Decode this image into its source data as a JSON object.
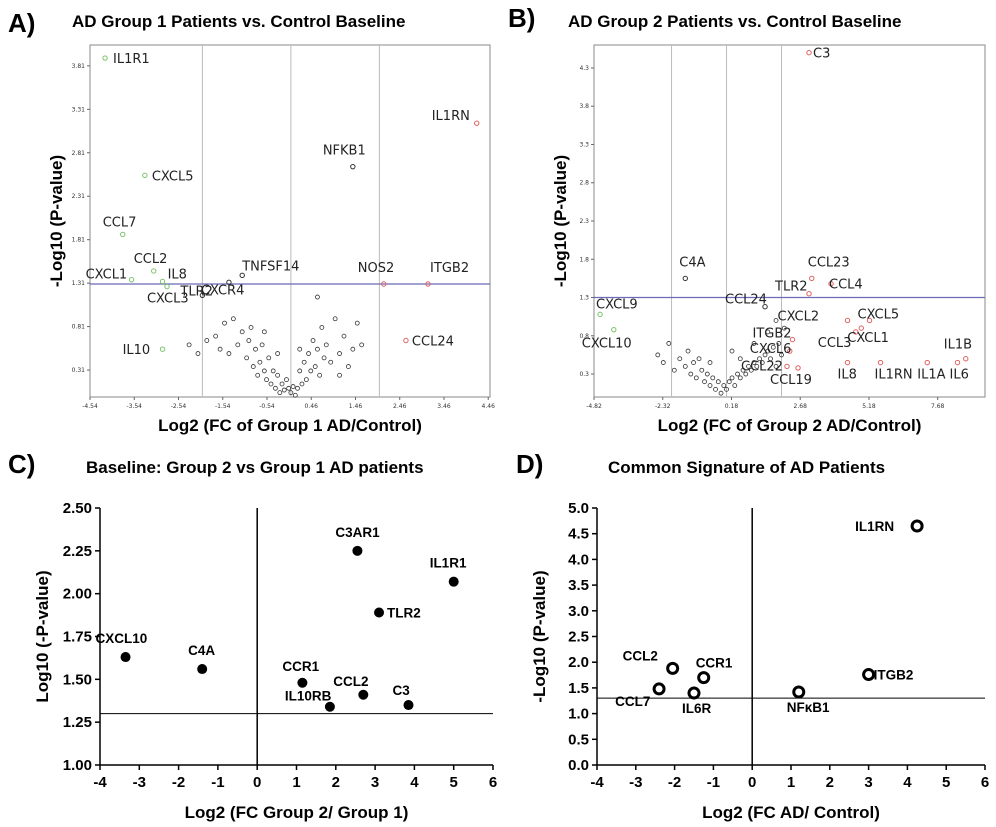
{
  "panels": {
    "a": {
      "letter": "A)",
      "title": "AD Group 1 Patients vs. Control Baseline"
    },
    "b": {
      "letter": "B)",
      "title": "AD Group 2 Patients vs. Control Baseline"
    },
    "c": {
      "letter": "C)",
      "title": "Baseline: Group 2 vs Group 1 AD patients"
    },
    "d": {
      "letter": "D)",
      "title": "Common Signature of AD Patients"
    }
  },
  "colors": {
    "up": "#e06060",
    "down": "#7dc46b",
    "ns": "#333333",
    "threshold": "#6b6bb8",
    "axis": "#000000",
    "grid": "#bbbbbb"
  },
  "chart_data": [
    {
      "id": "a",
      "type": "scatter",
      "title": "AD Group 1 Patients vs. Control Baseline",
      "xlabel": "Log2 (FC of Group 1 AD/Control)",
      "ylabel": "-Log10 (P-value)",
      "xlim": [
        -4.54,
        4.5
      ],
      "ylim": [
        0,
        4.05
      ],
      "xticks": [
        "-4.54",
        "-3.54",
        "-2.54",
        "-1.54",
        "-0.54",
        "0.46",
        "1.46",
        "2.46",
        "3.46",
        "4.46"
      ],
      "xtick_values": [
        -4.54,
        -3.54,
        -2.54,
        -1.54,
        -0.54,
        0.46,
        1.46,
        2.46,
        3.46,
        4.46
      ],
      "yticks": [
        "0.31",
        "0.81",
        "1.31",
        "1.81",
        "2.31",
        "2.81",
        "3.31",
        "3.81"
      ],
      "ytick_values": [
        0.31,
        0.81,
        1.31,
        1.81,
        2.31,
        2.81,
        3.31,
        3.81
      ],
      "vlines": [
        -2.0,
        0.0,
        2.0
      ],
      "hline": 1.3,
      "grid": false,
      "points": [
        {
          "label": "IL1R1",
          "x": -4.2,
          "y": 3.9,
          "color": "down"
        },
        {
          "label": "CXCL5",
          "x": -3.3,
          "y": 2.55,
          "color": "down"
        },
        {
          "label": "CCL7",
          "x": -3.8,
          "y": 1.87,
          "color": "down"
        },
        {
          "label": "CCL2",
          "x": -3.1,
          "y": 1.45,
          "color": "down"
        },
        {
          "label": "CXCL1",
          "x": -3.6,
          "y": 1.35,
          "color": "down"
        },
        {
          "label": "IL8",
          "x": -2.9,
          "y": 1.33,
          "color": "down"
        },
        {
          "label": "CXCL3",
          "x": -2.8,
          "y": 1.27,
          "color": "down"
        },
        {
          "label": "TLR2",
          "x": -2.0,
          "y": 1.17,
          "color": "ns"
        },
        {
          "label": "IL10",
          "x": -2.9,
          "y": 0.55,
          "color": "down"
        },
        {
          "label": "TNFSF14",
          "x": -1.1,
          "y": 1.4,
          "color": "ns"
        },
        {
          "label": "CXCR4",
          "x": -1.4,
          "y": 1.32,
          "color": "ns"
        },
        {
          "label": "NFKB1",
          "x": 1.4,
          "y": 2.65,
          "color": "ns"
        },
        {
          "label": "IL1RN",
          "x": 4.2,
          "y": 3.15,
          "color": "up"
        },
        {
          "label": "NOS2",
          "x": 2.1,
          "y": 1.3,
          "color": "up"
        },
        {
          "label": "ITGB2",
          "x": 3.1,
          "y": 1.3,
          "color": "up"
        },
        {
          "label": "CCL24",
          "x": 2.6,
          "y": 0.65,
          "color": "up"
        }
      ],
      "cloud": [
        [
          -2.3,
          0.6
        ],
        [
          -2.1,
          0.5
        ],
        [
          -1.9,
          0.65
        ],
        [
          -1.7,
          0.7
        ],
        [
          -1.6,
          0.55
        ],
        [
          -1.5,
          0.85
        ],
        [
          -1.4,
          0.5
        ],
        [
          -1.3,
          0.9
        ],
        [
          -1.2,
          0.6
        ],
        [
          -1.1,
          0.75
        ],
        [
          -1.0,
          0.45
        ],
        [
          -0.95,
          0.65
        ],
        [
          -0.9,
          0.8
        ],
        [
          -0.85,
          0.35
        ],
        [
          -0.8,
          0.55
        ],
        [
          -0.75,
          0.25
        ],
        [
          -0.7,
          0.4
        ],
        [
          -0.65,
          0.6
        ],
        [
          -0.6,
          0.3
        ],
        [
          -0.55,
          0.2
        ],
        [
          -0.5,
          0.45
        ],
        [
          -0.45,
          0.15
        ],
        [
          -0.4,
          0.3
        ],
        [
          -0.35,
          0.1
        ],
        [
          -0.3,
          0.25
        ],
        [
          -0.25,
          0.05
        ],
        [
          -0.2,
          0.15
        ],
        [
          -0.15,
          0.08
        ],
        [
          -0.1,
          0.2
        ],
        [
          -0.05,
          0.1
        ],
        [
          0.0,
          0.05
        ],
        [
          0.05,
          0.12
        ],
        [
          0.1,
          0.02
        ],
        [
          0.15,
          0.1
        ],
        [
          0.2,
          0.3
        ],
        [
          0.25,
          0.15
        ],
        [
          0.3,
          0.4
        ],
        [
          0.35,
          0.2
        ],
        [
          0.4,
          0.5
        ],
        [
          0.45,
          0.3
        ],
        [
          0.5,
          0.65
        ],
        [
          0.55,
          0.35
        ],
        [
          0.6,
          0.55
        ],
        [
          0.65,
          0.25
        ],
        [
          0.7,
          0.8
        ],
        [
          0.75,
          0.45
        ],
        [
          0.8,
          0.6
        ],
        [
          0.9,
          0.4
        ],
        [
          1.0,
          0.9
        ],
        [
          1.1,
          0.5
        ],
        [
          1.2,
          0.7
        ],
        [
          1.3,
          0.35
        ],
        [
          1.4,
          0.55
        ],
        [
          1.5,
          0.85
        ],
        [
          1.6,
          0.6
        ],
        [
          0.2,
          0.55
        ],
        [
          -0.3,
          0.5
        ],
        [
          0.6,
          1.15
        ],
        [
          -0.6,
          0.75
        ],
        [
          1.1,
          0.25
        ]
      ]
    },
    {
      "id": "b",
      "type": "scatter",
      "title": "AD Group 2 Patients vs. Control Baseline",
      "xlabel": "Log2 (FC of Group 2 AD/Control)",
      "ylabel": "-Log10 (P-value)",
      "xlim": [
        -4.82,
        9.4
      ],
      "ylim": [
        0,
        4.6
      ],
      "xticks": [
        "-4.82",
        "-2.32",
        "0.18",
        "2.68",
        "5.18",
        "7.68"
      ],
      "xtick_values": [
        -4.82,
        -2.32,
        0.18,
        2.68,
        5.18,
        7.68
      ],
      "yticks": [
        "0.3",
        "0.8",
        "1.3",
        "1.8",
        "2.3",
        "2.8",
        "3.3",
        "3.8",
        "4.3"
      ],
      "ytick_values": [
        0.3,
        0.8,
        1.3,
        1.8,
        2.3,
        2.8,
        3.3,
        3.8,
        4.3
      ],
      "vlines": [
        -2.0,
        0.0,
        2.0
      ],
      "hline": 1.3,
      "grid": false,
      "points": [
        {
          "label": "C3",
          "x": 3.0,
          "y": 4.5,
          "color": "up"
        },
        {
          "label": "C4A",
          "x": -1.5,
          "y": 1.55,
          "color": "ns"
        },
        {
          "label": "CXCL9",
          "x": -4.6,
          "y": 1.08,
          "color": "down"
        },
        {
          "label": "CXCL10",
          "x": -4.1,
          "y": 0.88,
          "color": "down"
        },
        {
          "label": "CCL24",
          "x": 1.4,
          "y": 1.18,
          "color": "ns"
        },
        {
          "label": "TLR2",
          "x": 3.0,
          "y": 1.35,
          "color": "up"
        },
        {
          "label": "CCL23",
          "x": 3.1,
          "y": 1.55,
          "color": "up"
        },
        {
          "label": "CCL4",
          "x": 3.8,
          "y": 1.48,
          "color": "up"
        },
        {
          "label": "CXCL2",
          "x": 4.4,
          "y": 1.0,
          "color": "up"
        },
        {
          "label": "CXCL5",
          "x": 5.2,
          "y": 1.0,
          "color": "up"
        },
        {
          "label": "CCL3",
          "x": 4.7,
          "y": 0.85,
          "color": "up"
        },
        {
          "label": "CXCL1",
          "x": 4.9,
          "y": 0.9,
          "color": "up"
        },
        {
          "label": "ITGB2",
          "x": 2.4,
          "y": 0.75,
          "color": "up"
        },
        {
          "label": "CXCL6",
          "x": 2.3,
          "y": 0.6,
          "color": "up"
        },
        {
          "label": "CCL22",
          "x": 2.2,
          "y": 0.4,
          "color": "up"
        },
        {
          "label": "CCL19",
          "x": 2.6,
          "y": 0.38,
          "color": "up"
        },
        {
          "label": "IL8",
          "x": 4.4,
          "y": 0.45,
          "color": "up"
        },
        {
          "label": "IL1RN",
          "x": 5.6,
          "y": 0.45,
          "color": "up"
        },
        {
          "label": "IL1A",
          "x": 7.3,
          "y": 0.45,
          "color": "up"
        },
        {
          "label": "IL1B",
          "x": 8.7,
          "y": 0.5,
          "color": "up"
        },
        {
          "label": "IL6",
          "x": 8.4,
          "y": 0.45,
          "color": "up"
        }
      ],
      "cloud": [
        [
          -2.5,
          0.55
        ],
        [
          -2.3,
          0.45
        ],
        [
          -2.1,
          0.7
        ],
        [
          -1.9,
          0.35
        ],
        [
          -1.7,
          0.5
        ],
        [
          -1.5,
          0.4
        ],
        [
          -1.4,
          0.6
        ],
        [
          -1.3,
          0.3
        ],
        [
          -1.2,
          0.45
        ],
        [
          -1.1,
          0.25
        ],
        [
          -1.0,
          0.5
        ],
        [
          -0.9,
          0.35
        ],
        [
          -0.8,
          0.2
        ],
        [
          -0.7,
          0.3
        ],
        [
          -0.6,
          0.15
        ],
        [
          -0.5,
          0.25
        ],
        [
          -0.4,
          0.1
        ],
        [
          -0.3,
          0.2
        ],
        [
          -0.2,
          0.05
        ],
        [
          -0.1,
          0.15
        ],
        [
          0.0,
          0.1
        ],
        [
          0.1,
          0.2
        ],
        [
          0.2,
          0.25
        ],
        [
          0.3,
          0.15
        ],
        [
          0.4,
          0.3
        ],
        [
          0.5,
          0.25
        ],
        [
          0.6,
          0.35
        ],
        [
          0.7,
          0.3
        ],
        [
          0.8,
          0.4
        ],
        [
          0.9,
          0.35
        ],
        [
          1.0,
          0.45
        ],
        [
          1.1,
          0.4
        ],
        [
          1.2,
          0.5
        ],
        [
          1.3,
          0.45
        ],
        [
          1.4,
          0.55
        ],
        [
          1.5,
          0.6
        ],
        [
          1.6,
          0.5
        ],
        [
          1.7,
          0.65
        ],
        [
          1.8,
          0.4
        ],
        [
          1.9,
          0.7
        ],
        [
          2.0,
          0.55
        ],
        [
          -0.6,
          0.45
        ],
        [
          0.2,
          0.6
        ],
        [
          1.0,
          0.7
        ],
        [
          1.5,
          0.85
        ],
        [
          1.8,
          1.0
        ],
        [
          2.1,
          0.9
        ],
        [
          0.5,
          0.5
        ]
      ]
    },
    {
      "id": "c",
      "type": "scatter",
      "title": "Baseline: Group 2 vs Group 1 AD patients",
      "xlabel": "Log2 (FC Group 2/ Group 1)",
      "ylabel": "Log10 (-P-value)",
      "xlim": [
        -4,
        6
      ],
      "ylim": [
        1.0,
        2.5
      ],
      "xticks": [
        "-4",
        "-3",
        "-2",
        "-1",
        "0",
        "1",
        "2",
        "3",
        "4",
        "5",
        "6"
      ],
      "xtick_values": [
        -4,
        -3,
        -2,
        -1,
        0,
        1,
        2,
        3,
        4,
        5,
        6
      ],
      "yticks": [
        "1.00",
        "1.25",
        "1.50",
        "1.75",
        "2.00",
        "2.25",
        "2.50"
      ],
      "ytick_values": [
        1.0,
        1.25,
        1.5,
        1.75,
        2.0,
        2.25,
        2.5
      ],
      "hline": 1.3,
      "vline": 0,
      "grid": false,
      "points": [
        {
          "label": "CXCL10",
          "x": -3.35,
          "y": 1.63
        },
        {
          "label": "C4A",
          "x": -1.4,
          "y": 1.56
        },
        {
          "label": "C3AR1",
          "x": 2.55,
          "y": 2.25
        },
        {
          "label": "IL1R1",
          "x": 5.0,
          "y": 2.07
        },
        {
          "label": "TLR2",
          "x": 3.1,
          "y": 1.89
        },
        {
          "label": "CCR1",
          "x": 1.15,
          "y": 1.48
        },
        {
          "label": "CCL2",
          "x": 2.7,
          "y": 1.41
        },
        {
          "label": "IL10RB",
          "x": 1.85,
          "y": 1.34
        },
        {
          "label": "C3",
          "x": 3.85,
          "y": 1.35
        }
      ]
    },
    {
      "id": "d",
      "type": "scatter",
      "title": "Common Signature of AD Patients",
      "xlabel": "Log2 (FC AD/ Control)",
      "ylabel": "-Log10 (P-value)",
      "xlim": [
        -4,
        6
      ],
      "ylim": [
        0,
        5.0
      ],
      "xticks": [
        "-4",
        "-3",
        "-2",
        "-1",
        "0",
        "1",
        "2",
        "3",
        "4",
        "5",
        "6"
      ],
      "xtick_values": [
        -4,
        -3,
        -2,
        -1,
        0,
        1,
        2,
        3,
        4,
        5,
        6
      ],
      "yticks": [
        "0.0",
        "0.5",
        "1.0",
        "1.5",
        "2.0",
        "2.5",
        "3.0",
        "3.5",
        "4.0",
        "4.5",
        "5.0"
      ],
      "ytick_values": [
        0,
        0.5,
        1.0,
        1.5,
        2.0,
        2.5,
        3.0,
        3.5,
        4.0,
        4.5,
        5.0
      ],
      "hline": 1.3,
      "vline": 0,
      "grid": false,
      "points": [
        {
          "label": "IL1RN",
          "x": 4.25,
          "y": 4.65
        },
        {
          "label": "CCL2",
          "x": -2.05,
          "y": 1.88
        },
        {
          "label": "CCR1",
          "x": -1.25,
          "y": 1.7
        },
        {
          "label": "CCL7",
          "x": -2.4,
          "y": 1.48
        },
        {
          "label": "IL6R",
          "x": -1.5,
          "y": 1.4
        },
        {
          "label": "NFκB1",
          "x": 1.2,
          "y": 1.42
        },
        {
          "label": "ITGB2",
          "x": 3.0,
          "y": 1.76
        }
      ]
    }
  ]
}
